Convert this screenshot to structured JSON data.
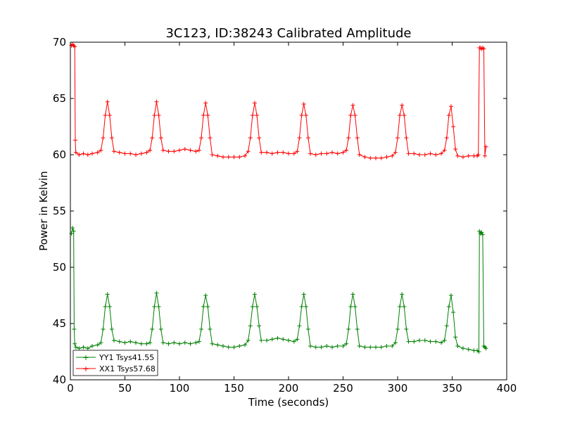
{
  "chart_data": {
    "type": "line",
    "title": "3C123, ID:38243 Calibrated Amplitude",
    "xlabel": "Time (seconds)",
    "ylabel": "Power in Kelvin",
    "xlim": [
      0,
      400
    ],
    "ylim": [
      40,
      70
    ],
    "xticks": [
      0,
      50,
      100,
      150,
      200,
      250,
      300,
      350,
      400
    ],
    "yticks": [
      40,
      45,
      50,
      55,
      60,
      65,
      70
    ],
    "grid": false,
    "legend_position": "lower-left",
    "marker": "+",
    "series": [
      {
        "name": "YY1 Tsys41.55",
        "color": "#008000",
        "segments": [
          {
            "points": [
              [
                1,
                53.0
              ],
              [
                2,
                53.5
              ],
              [
                3,
                53.2
              ],
              [
                3.5,
                44.5
              ],
              [
                4,
                43.2
              ],
              [
                5,
                42.9
              ],
              [
                8,
                42.8
              ],
              [
                12,
                42.9
              ],
              [
                16,
                42.8
              ],
              [
                20,
                43.0
              ],
              [
                25,
                43.1
              ],
              [
                28,
                43.3
              ],
              [
                30,
                44.5
              ],
              [
                32,
                46.5
              ],
              [
                34,
                47.6
              ],
              [
                36,
                46.5
              ],
              [
                38,
                44.5
              ],
              [
                40,
                43.5
              ],
              [
                45,
                43.4
              ],
              [
                50,
                43.3
              ],
              [
                55,
                43.4
              ],
              [
                60,
                43.3
              ],
              [
                65,
                43.2
              ],
              [
                70,
                43.2
              ],
              [
                73,
                43.3
              ],
              [
                75,
                44.5
              ],
              [
                77,
                46.5
              ],
              [
                79,
                47.7
              ],
              [
                81,
                46.5
              ],
              [
                83,
                44.5
              ],
              [
                85,
                43.3
              ],
              [
                90,
                43.2
              ],
              [
                95,
                43.3
              ],
              [
                100,
                43.2
              ],
              [
                105,
                43.3
              ],
              [
                110,
                43.2
              ],
              [
                115,
                43.3
              ],
              [
                118,
                43.4
              ],
              [
                120,
                44.5
              ],
              [
                122,
                46.5
              ],
              [
                124,
                47.5
              ],
              [
                126,
                46.5
              ],
              [
                128,
                44.5
              ],
              [
                130,
                43.2
              ],
              [
                135,
                43.1
              ],
              [
                140,
                43.0
              ],
              [
                145,
                42.9
              ],
              [
                150,
                42.9
              ],
              [
                155,
                43.0
              ],
              [
                160,
                43.1
              ],
              [
                163,
                43.5
              ],
              [
                165,
                44.8
              ],
              [
                167,
                46.5
              ],
              [
                169,
                47.6
              ],
              [
                171,
                46.5
              ],
              [
                173,
                44.8
              ],
              [
                175,
                43.5
              ],
              [
                180,
                43.5
              ],
              [
                185,
                43.6
              ],
              [
                190,
                43.7
              ],
              [
                195,
                43.6
              ],
              [
                200,
                43.5
              ],
              [
                205,
                43.4
              ],
              [
                208,
                43.6
              ],
              [
                210,
                44.8
              ],
              [
                212,
                46.5
              ],
              [
                214,
                47.6
              ],
              [
                216,
                46.5
              ],
              [
                218,
                44.5
              ],
              [
                220,
                43.0
              ],
              [
                225,
                42.9
              ],
              [
                230,
                42.9
              ],
              [
                235,
                43.0
              ],
              [
                240,
                42.9
              ],
              [
                245,
                43.0
              ],
              [
                250,
                43.0
              ],
              [
                253,
                43.2
              ],
              [
                255,
                44.5
              ],
              [
                257,
                46.5
              ],
              [
                259,
                47.6
              ],
              [
                261,
                46.5
              ],
              [
                263,
                44.5
              ],
              [
                265,
                43.0
              ],
              [
                270,
                42.9
              ],
              [
                275,
                42.9
              ],
              [
                280,
                42.9
              ],
              [
                285,
                42.9
              ],
              [
                290,
                43.0
              ],
              [
                295,
                43.0
              ],
              [
                298,
                43.3
              ],
              [
                300,
                44.5
              ],
              [
                302,
                46.5
              ],
              [
                304,
                47.6
              ],
              [
                306,
                46.5
              ],
              [
                308,
                44.5
              ],
              [
                310,
                43.4
              ],
              [
                315,
                43.4
              ],
              [
                320,
                43.5
              ],
              [
                325,
                43.5
              ],
              [
                330,
                43.4
              ],
              [
                335,
                43.4
              ],
              [
                340,
                43.3
              ],
              [
                343,
                43.5
              ],
              [
                345,
                44.8
              ],
              [
                347,
                46.5
              ],
              [
                349,
                47.5
              ],
              [
                351,
                46.0
              ],
              [
                353,
                43.8
              ],
              [
                355,
                43.0
              ],
              [
                360,
                42.8
              ],
              [
                365,
                42.7
              ],
              [
                370,
                42.6
              ],
              [
                373,
                42.6
              ],
              [
                374.5,
                42.5
              ],
              [
                375,
                53.2
              ],
              [
                376,
                53.0
              ],
              [
                377,
                53.1
              ],
              [
                378,
                52.9
              ],
              [
                379,
                43.0
              ],
              [
                380,
                42.9
              ],
              [
                381,
                42.8
              ]
            ]
          }
        ]
      },
      {
        "name": "XX1 Tsys57.68",
        "color": "#ff0000",
        "segments": [
          {
            "points": [
              [
                1,
                69.7
              ],
              [
                2,
                69.8
              ],
              [
                3,
                69.7
              ],
              [
                4,
                69.6
              ],
              [
                4.5,
                61.3
              ],
              [
                5,
                60.2
              ],
              [
                8,
                60.0
              ],
              [
                12,
                60.1
              ],
              [
                16,
                60.0
              ],
              [
                20,
                60.1
              ],
              [
                25,
                60.2
              ],
              [
                28,
                60.4
              ],
              [
                30,
                61.5
              ],
              [
                32,
                63.5
              ],
              [
                34,
                64.7
              ],
              [
                36,
                63.5
              ],
              [
                38,
                61.5
              ],
              [
                40,
                60.3
              ],
              [
                45,
                60.2
              ],
              [
                50,
                60.1
              ],
              [
                55,
                60.1
              ],
              [
                60,
                60.0
              ],
              [
                65,
                60.1
              ],
              [
                70,
                60.2
              ],
              [
                73,
                60.4
              ],
              [
                75,
                61.5
              ],
              [
                77,
                63.5
              ],
              [
                79,
                64.7
              ],
              [
                81,
                63.5
              ],
              [
                83,
                61.5
              ],
              [
                85,
                60.4
              ],
              [
                90,
                60.3
              ],
              [
                95,
                60.3
              ],
              [
                100,
                60.4
              ],
              [
                105,
                60.5
              ],
              [
                110,
                60.4
              ],
              [
                115,
                60.3
              ],
              [
                118,
                60.4
              ],
              [
                120,
                61.5
              ],
              [
                122,
                63.5
              ],
              [
                124,
                64.6
              ],
              [
                126,
                63.5
              ],
              [
                128,
                61.5
              ],
              [
                130,
                60.0
              ],
              [
                135,
                59.9
              ],
              [
                140,
                59.8
              ],
              [
                145,
                59.8
              ],
              [
                150,
                59.8
              ],
              [
                155,
                59.8
              ],
              [
                160,
                59.9
              ],
              [
                163,
                60.3
              ],
              [
                165,
                61.5
              ],
              [
                167,
                63.5
              ],
              [
                169,
                64.6
              ],
              [
                171,
                63.5
              ],
              [
                173,
                61.5
              ],
              [
                175,
                60.2
              ],
              [
                180,
                60.2
              ],
              [
                185,
                60.1
              ],
              [
                190,
                60.2
              ],
              [
                195,
                60.2
              ],
              [
                200,
                60.1
              ],
              [
                205,
                60.1
              ],
              [
                208,
                60.3
              ],
              [
                210,
                61.5
              ],
              [
                212,
                63.5
              ],
              [
                214,
                64.5
              ],
              [
                216,
                63.5
              ],
              [
                218,
                61.5
              ],
              [
                220,
                60.1
              ],
              [
                225,
                60.0
              ],
              [
                230,
                60.1
              ],
              [
                235,
                60.1
              ],
              [
                240,
                60.2
              ],
              [
                245,
                60.1
              ],
              [
                250,
                60.2
              ],
              [
                253,
                60.4
              ],
              [
                255,
                61.5
              ],
              [
                257,
                63.5
              ],
              [
                259,
                64.4
              ],
              [
                261,
                63.5
              ],
              [
                263,
                61.5
              ],
              [
                265,
                60.0
              ],
              [
                270,
                59.8
              ],
              [
                275,
                59.7
              ],
              [
                280,
                59.7
              ],
              [
                285,
                59.7
              ],
              [
                290,
                59.8
              ],
              [
                295,
                59.9
              ],
              [
                298,
                60.2
              ],
              [
                300,
                61.5
              ],
              [
                302,
                63.5
              ],
              [
                304,
                64.4
              ],
              [
                306,
                63.5
              ],
              [
                308,
                61.5
              ],
              [
                310,
                60.1
              ],
              [
                315,
                60.1
              ],
              [
                320,
                60.0
              ],
              [
                325,
                60.0
              ],
              [
                330,
                60.1
              ],
              [
                335,
                60.0
              ],
              [
                340,
                60.1
              ],
              [
                343,
                60.4
              ],
              [
                345,
                61.5
              ],
              [
                347,
                63.5
              ],
              [
                349,
                64.3
              ],
              [
                351,
                62.5
              ],
              [
                353,
                60.5
              ],
              [
                355,
                59.9
              ],
              [
                360,
                59.8
              ],
              [
                365,
                59.9
              ],
              [
                370,
                59.9
              ],
              [
                373,
                59.9
              ],
              [
                374,
                60.0
              ],
              [
                375,
                69.5
              ],
              [
                376,
                69.5
              ],
              [
                377,
                69.4
              ],
              [
                378,
                69.5
              ],
              [
                379,
                69.4
              ],
              [
                380,
                59.9
              ],
              [
                381,
                60.7
              ]
            ]
          }
        ]
      }
    ]
  }
}
